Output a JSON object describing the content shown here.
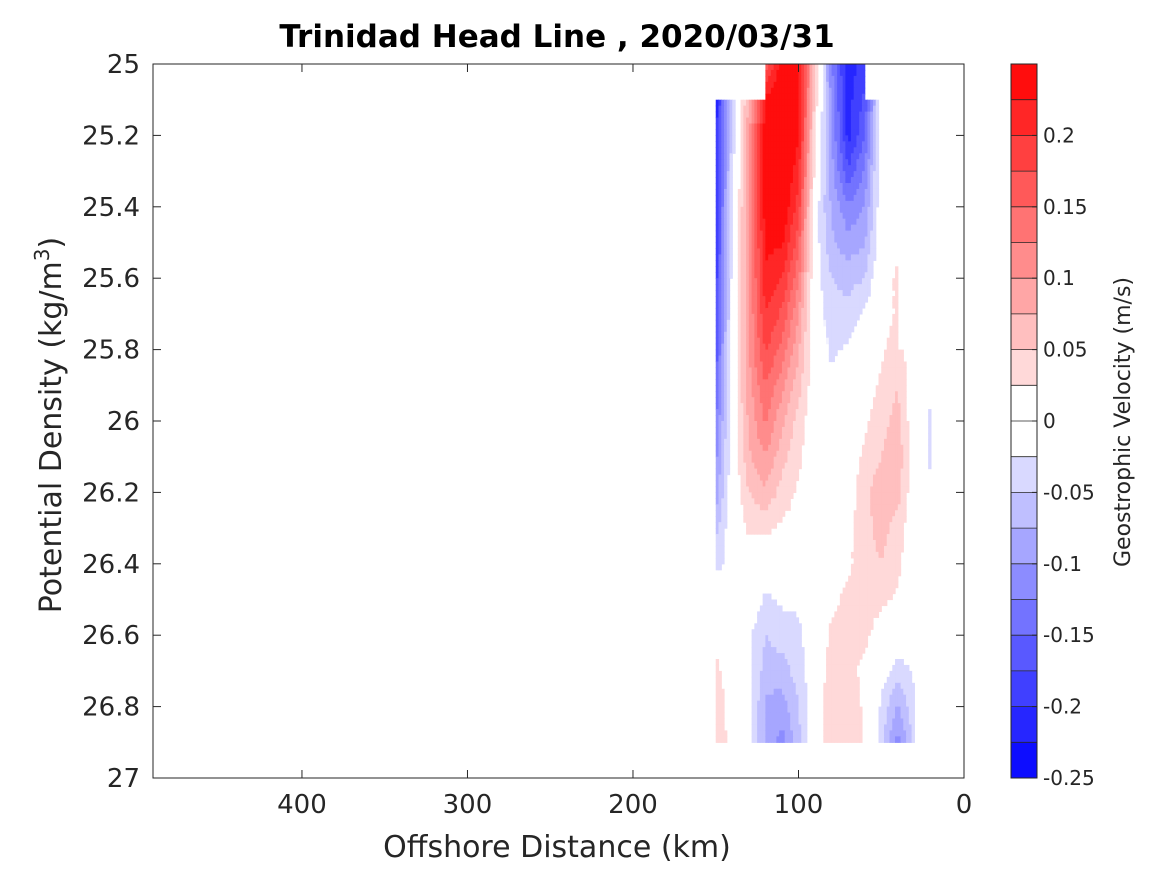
{
  "chart_data": {
    "type": "heatmap",
    "title": "Trinidad Head Line , 2020/03/31",
    "xlabel": "Offshore Distance (km)",
    "ylabel_main": "Potential Density (kg/m",
    "ylabel_sup": "3",
    "ylabel_close": ")",
    "colorbar_label": "Geostrophic Velocity (m/s)",
    "xlim": [
      490,
      0
    ],
    "x_reversed": true,
    "ylim": [
      25,
      27
    ],
    "y_reversed": true,
    "x_ticks": [
      400,
      300,
      200,
      100,
      0
    ],
    "x_tick_labels": [
      "400",
      "300",
      "200",
      "100",
      "0"
    ],
    "y_ticks": [
      25,
      25.2,
      25.4,
      25.6,
      25.8,
      26,
      26.2,
      26.4,
      26.6,
      26.8,
      27
    ],
    "y_tick_labels": [
      "25",
      "25.2",
      "25.4",
      "25.6",
      "25.8",
      "26",
      "26.2",
      "26.4",
      "26.6",
      "26.8",
      "27"
    ],
    "colorbar_range": [
      -0.25,
      0.25
    ],
    "colorbar_ticks": [
      0.2,
      0.15,
      0.1,
      0.05,
      0,
      -0.05,
      -0.1,
      -0.15,
      -0.2,
      -0.25
    ],
    "colorbar_tick_labels": [
      "0.2",
      "0.15",
      "0.1",
      "0.05",
      "0",
      "-0.05",
      "-0.1",
      "-0.15",
      "-0.2",
      "-0.25"
    ],
    "colormap": "blue-white-red",
    "color_negative": "#0000ff",
    "color_zero": "#ffffff",
    "color_positive": "#ff0000",
    "contour_levels": [
      -0.25,
      -0.225,
      -0.2,
      -0.175,
      -0.15,
      -0.125,
      -0.1,
      -0.075,
      -0.05,
      -0.025,
      0,
      0.025,
      0.05,
      0.075,
      0.1,
      0.125,
      0.15,
      0.175,
      0.2,
      0.225,
      0.25
    ],
    "grid": false,
    "x": [
      150,
      140,
      130,
      120,
      110,
      100,
      90,
      80,
      70,
      60,
      50,
      40,
      30,
      20
    ],
    "y": [
      25.0,
      25.1,
      25.2,
      25.3,
      25.4,
      25.5,
      25.6,
      25.7,
      25.8,
      25.9,
      26.0,
      26.1,
      26.2,
      26.3,
      26.4,
      26.5,
      26.6,
      26.7,
      26.8,
      26.9
    ],
    "z": [
      [
        null,
        null,
        null,
        0.16,
        0.24,
        0.24,
        0.05,
        -0.12,
        -0.22,
        -0.18,
        null,
        null,
        null,
        null
      ],
      [
        -0.22,
        -0.05,
        0.08,
        0.23,
        0.26,
        0.24,
        0.04,
        -0.11,
        -0.21,
        -0.17,
        -0.01,
        null,
        null,
        null
      ],
      [
        -0.21,
        -0.04,
        0.09,
        0.24,
        0.26,
        0.23,
        0.02,
        -0.1,
        -0.21,
        -0.15,
        -0.01,
        null,
        null,
        null
      ],
      [
        -0.21,
        -0.03,
        0.09,
        0.24,
        0.26,
        0.21,
        0.01,
        -0.09,
        -0.17,
        -0.12,
        0.0,
        null,
        null,
        null
      ],
      [
        -0.2,
        -0.02,
        0.1,
        0.24,
        0.25,
        0.19,
        -0.01,
        -0.08,
        -0.12,
        -0.1,
        0.0,
        0.01,
        null,
        null
      ],
      [
        -0.2,
        -0.01,
        0.1,
        0.23,
        0.23,
        0.16,
        -0.01,
        -0.07,
        -0.09,
        -0.08,
        0.0,
        0.02,
        null,
        null
      ],
      [
        -0.19,
        -0.01,
        0.1,
        0.22,
        0.2,
        0.13,
        -0.01,
        -0.05,
        -0.06,
        -0.05,
        0.01,
        0.03,
        null,
        null
      ],
      [
        -0.18,
        -0.01,
        0.1,
        0.2,
        0.17,
        0.1,
        -0.01,
        -0.04,
        -0.04,
        -0.02,
        0.01,
        0.03,
        null,
        null
      ],
      [
        -0.17,
        0.0,
        0.1,
        0.18,
        0.14,
        0.08,
        0.0,
        -0.03,
        -0.02,
        0.0,
        0.02,
        0.04,
        0.0,
        -0.02
      ],
      [
        -0.15,
        0.0,
        0.09,
        0.15,
        0.11,
        0.06,
        0.0,
        -0.02,
        0.0,
        0.01,
        0.03,
        0.05,
        0.0,
        -0.02
      ],
      [
        -0.13,
        0.0,
        0.08,
        0.13,
        0.08,
        0.04,
        0.0,
        0.0,
        0.0,
        0.02,
        0.04,
        0.06,
        0.0,
        -0.03
      ],
      [
        -0.11,
        0.0,
        0.07,
        0.1,
        0.06,
        0.03,
        0.0,
        0.0,
        0.01,
        0.03,
        0.05,
        0.07,
        0.0,
        -0.03
      ],
      [
        -0.09,
        0.0,
        0.05,
        0.07,
        0.04,
        0.02,
        0.0,
        0.0,
        0.01,
        0.04,
        0.07,
        0.06,
        0.0,
        -0.02
      ],
      [
        -0.06,
        0.0,
        0.03,
        0.03,
        0.02,
        0.01,
        0.0,
        0.01,
        0.02,
        0.04,
        0.06,
        0.04,
        0.0,
        0.0
      ],
      [
        -0.03,
        -0.02,
        0.0,
        0.0,
        0.0,
        0.0,
        0.0,
        0.01,
        0.02,
        0.04,
        0.05,
        0.03,
        0.0,
        null
      ],
      [
        0.0,
        -0.01,
        0.0,
        -0.03,
        -0.02,
        -0.02,
        0.0,
        0.02,
        0.03,
        0.04,
        0.03,
        0.02,
        0.0,
        null
      ],
      [
        0.02,
        0.0,
        -0.02,
        -0.05,
        -0.04,
        -0.03,
        0.0,
        0.03,
        0.03,
        0.03,
        0.01,
        0.0,
        0.0,
        null
      ],
      [
        0.03,
        0.01,
        -0.02,
        -0.06,
        -0.06,
        -0.04,
        0.0,
        0.04,
        0.03,
        0.02,
        -0.01,
        -0.04,
        -0.02,
        null
      ],
      [
        0.04,
        0.01,
        -0.01,
        -0.08,
        -0.09,
        -0.05,
        0.0,
        0.05,
        0.04,
        0.02,
        -0.03,
        -0.08,
        -0.03,
        null
      ],
      [
        0.05,
        0.01,
        -0.01,
        -0.08,
        -0.11,
        -0.06,
        0.0,
        0.05,
        0.05,
        0.02,
        -0.04,
        -0.11,
        -0.04,
        null
      ]
    ]
  }
}
